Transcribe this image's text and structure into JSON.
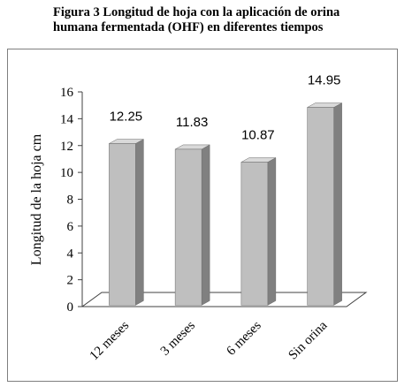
{
  "caption": {
    "line1": "Figura 3 Longitud de hoja con la aplicación de orina",
    "line2": "humana fermentada (OHF) en diferentes tiempos"
  },
  "chart_data": {
    "type": "bar",
    "style": "3d-column",
    "categories": [
      "12 meses",
      "3 meses",
      "6 meses",
      "Sin orina"
    ],
    "values": [
      12.25,
      11.83,
      10.87,
      14.95
    ],
    "value_labels": [
      "12.25",
      "11.83",
      "10.87",
      "14.95"
    ],
    "title": "",
    "xlabel": "",
    "ylabel": "Longitud de la hoja cm",
    "ylim": [
      0,
      16
    ],
    "yticks": [
      0,
      2,
      4,
      6,
      8,
      10,
      12,
      14,
      16
    ],
    "grid": false,
    "legend": "none",
    "colors": {
      "bar_front": "#bfbfbf",
      "bar_side": "#808080",
      "bar_top": "#d9d9d9",
      "floor": "#ffffff",
      "axis": "#404040"
    }
  }
}
